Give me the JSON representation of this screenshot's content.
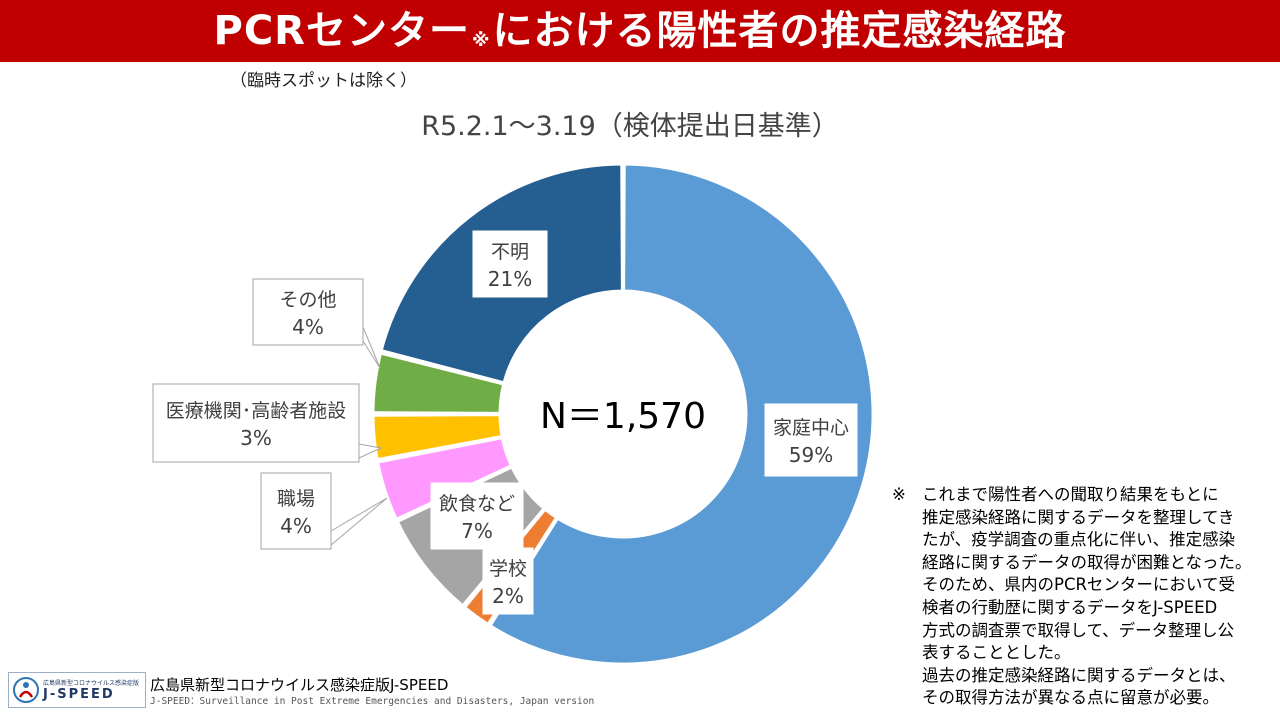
{
  "header": {
    "title_main": "PCRセンター",
    "title_mark": "※",
    "title_rest": "における陽性者の推定感染経路",
    "subnote": "（臨時スポットは除く）"
  },
  "chart_data": {
    "type": "pie",
    "title": "R5.2.1～3.19（検体提出日基準）",
    "center_label": "N＝1,570",
    "slices": [
      {
        "label": "家庭中心",
        "value": 59,
        "display": "59%",
        "color": "#5b9bd5"
      },
      {
        "label": "学校",
        "value": 2,
        "display": "2%",
        "color": "#ed7d31"
      },
      {
        "label": "飲食など",
        "value": 7,
        "display": "7%",
        "color": "#a5a5a5"
      },
      {
        "label": "職場",
        "value": 4,
        "display": "4%",
        "color": "#ff99ff"
      },
      {
        "label": "医療機関･高齢者施設",
        "value": 3,
        "display": "3%",
        "color": "#ffc000"
      },
      {
        "label": "その他",
        "value": 4,
        "display": "4%",
        "color": "#70ad47"
      },
      {
        "label": "不明",
        "value": 21,
        "display": "21%",
        "color": "#255e91"
      }
    ]
  },
  "note": {
    "mark": "※",
    "text": "これまで陽性者への聞取り結果をもとに\n推定感染経路に関するデータを整理してき\nたが、疫学調査の重点化に伴い、推定感染\n経路に関するデータの取得が困難となった。\nそのため、県内のPCRセンターにおいて受\n検者の行動歴に関するデータをJ-SPEED\n方式の調査票で取得して、データ整理し公\n表することとした。\n過去の推定感染経路に関するデータとは、\nその取得方法が異なる点に留意が必要。"
  },
  "footer": {
    "logo_small": "広島県新型コロナウイルス感染症版",
    "logo_big": "J-SPEED",
    "org": "広島県新型コロナウイルス感染症版J-SPEED",
    "sub": "J-SPEED：Surveillance in Post Extreme Emergencies and Disasters, Japan version"
  }
}
